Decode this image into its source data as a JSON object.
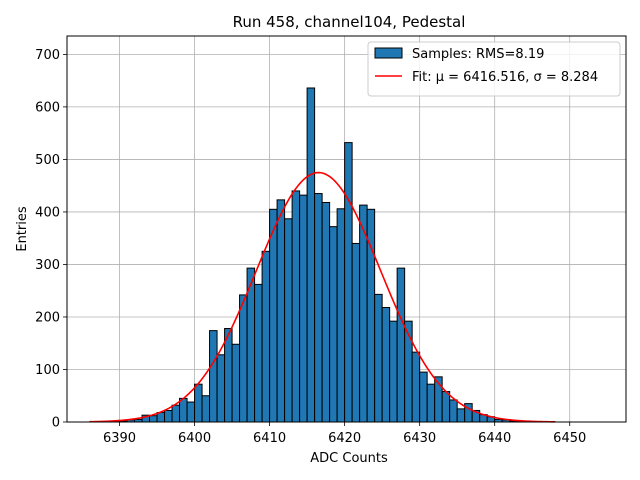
{
  "chart_data": {
    "type": "bar",
    "title": "Run 458, channel104, Pedestal",
    "xlabel": "ADC Counts",
    "ylabel": "Entries",
    "xlim": [
      6383.0,
      6457.5
    ],
    "ylim": [
      0,
      735
    ],
    "xticks": [
      6390,
      6400,
      6410,
      6420,
      6430,
      6440,
      6450
    ],
    "yticks": [
      0,
      100,
      200,
      300,
      400,
      500,
      600,
      700
    ],
    "grid": true,
    "legend_position": "top-right",
    "bin_width": 1,
    "bin_starts": [
      6389,
      6390,
      6391,
      6392,
      6393,
      6394,
      6395,
      6396,
      6397,
      6398,
      6399,
      6400,
      6401,
      6402,
      6403,
      6404,
      6405,
      6406,
      6407,
      6408,
      6409,
      6410,
      6411,
      6412,
      6413,
      6414,
      6415,
      6416,
      6417,
      6418,
      6419,
      6420,
      6421,
      6422,
      6423,
      6424,
      6425,
      6426,
      6427,
      6428,
      6429,
      6430,
      6431,
      6432,
      6433,
      6434,
      6435,
      6436,
      6437,
      6438,
      6439,
      6440,
      6441,
      6442,
      6443,
      6444,
      6445,
      6446,
      6447
    ],
    "counts": [
      1,
      2,
      4,
      5,
      13,
      12,
      18,
      22,
      32,
      45,
      38,
      72,
      50,
      174,
      128,
      178,
      148,
      242,
      293,
      262,
      325,
      405,
      423,
      387,
      440,
      432,
      636,
      435,
      418,
      372,
      406,
      532,
      340,
      413,
      405,
      243,
      218,
      192,
      293,
      192,
      133,
      95,
      72,
      86,
      58,
      42,
      25,
      35,
      22,
      14,
      10,
      5,
      4,
      2,
      1,
      1,
      0,
      0,
      1
    ],
    "series": [
      {
        "name": "Samples: RMS=8.19",
        "kind": "histogram",
        "color": "#1f77b4",
        "edgecolor": "#000000"
      },
      {
        "name": "Fit: μ = 6416.516, σ = 8.284",
        "kind": "line",
        "color": "#ff0000",
        "mu": 6416.516,
        "sigma": 8.284,
        "amplitude": 475,
        "x_range": [
          6386,
          6448
        ]
      }
    ]
  }
}
